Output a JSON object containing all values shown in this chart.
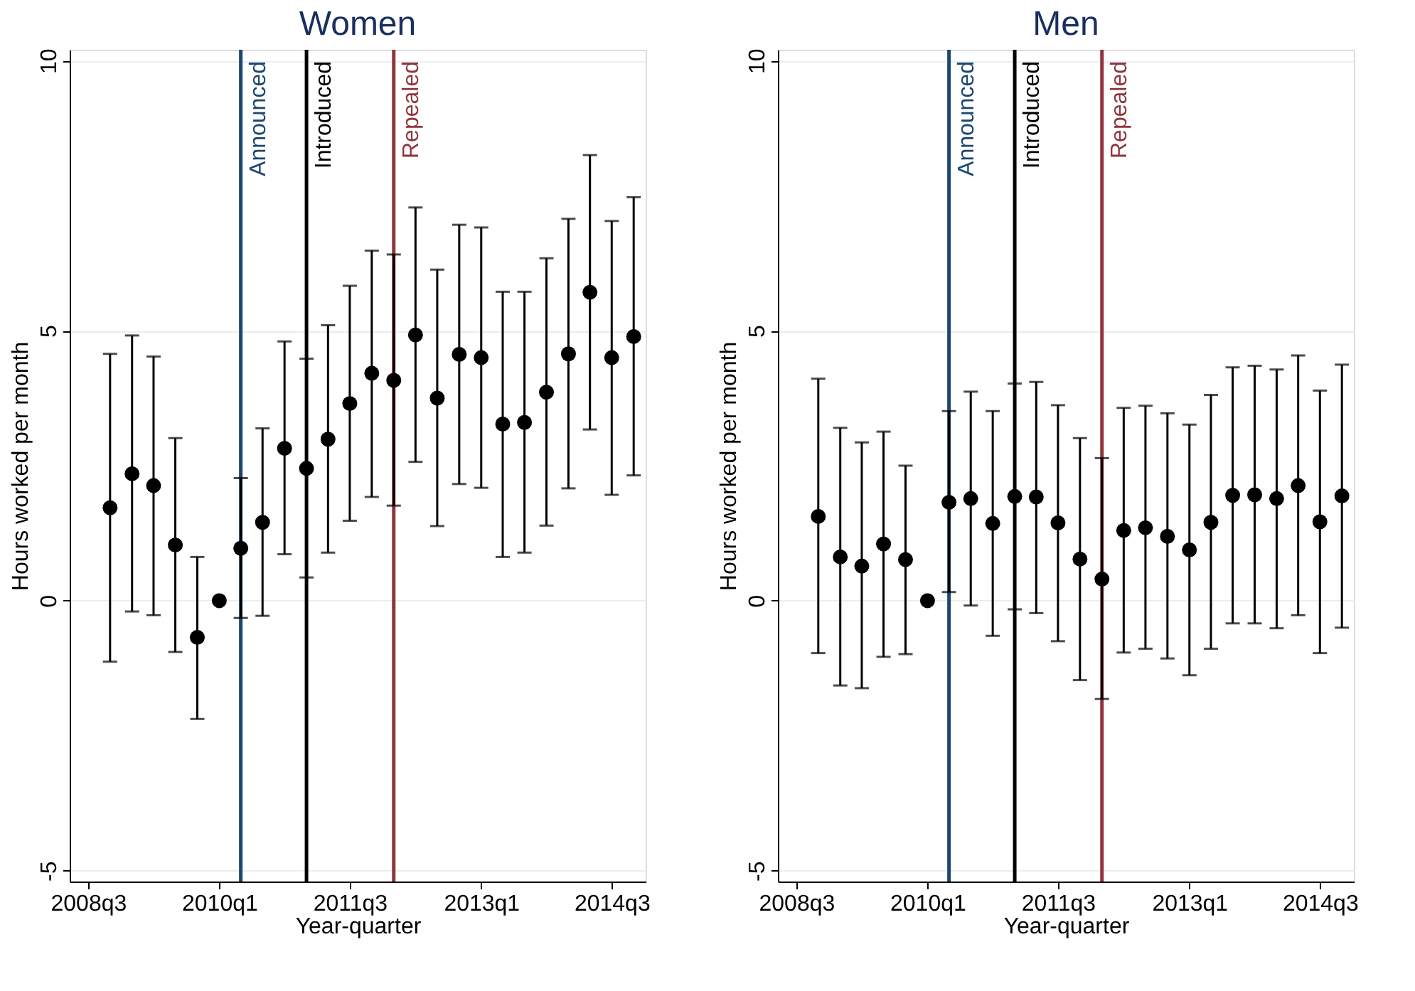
{
  "chart_data": [
    {
      "type": "scatter",
      "title": "Women",
      "xlabel": "Year-quarter",
      "ylabel": "Hours worked per month",
      "x": [
        "2008-10",
        "2009-01",
        "2009-04",
        "2009-07",
        "2009-10",
        "2010-01",
        "2010-04",
        "2010-07",
        "2010-10",
        "2011-01",
        "2011-04",
        "2011-07",
        "2011-10",
        "2012-01",
        "2012-04",
        "2012-07",
        "2012-10",
        "2013-01",
        "2013-04",
        "2013-07",
        "2013-10",
        "2014-01",
        "2014-04",
        "2014-07",
        "2014-10"
      ],
      "series": [
        {
          "color": "#000000",
          "values": [
            1.72,
            2.35,
            2.13,
            1.03,
            -0.68,
            0,
            0.97,
            1.45,
            2.82,
            2.45,
            2.99,
            3.65,
            4.21,
            4.08,
            4.92,
            3.75,
            4.56,
            4.5,
            3.27,
            3.3,
            3.86,
            4.57,
            5.71,
            4.5,
            4.89
          ],
          "errors": [
            [
              -1.13,
              4.57
            ],
            [
              -0.2,
              4.91
            ],
            [
              -0.27,
              4.52
            ],
            [
              -0.95,
              3.01
            ],
            [
              -2.19,
              0.81
            ],
            null,
            [
              -0.32,
              2.27
            ],
            [
              -0.28,
              3.19
            ],
            [
              0.86,
              4.8
            ],
            [
              0.43,
              4.48
            ],
            [
              0.89,
              5.1
            ],
            [
              1.48,
              5.83
            ],
            [
              1.92,
              6.48
            ],
            [
              1.76,
              6.41
            ],
            [
              2.57,
              7.28
            ],
            [
              1.38,
              6.13
            ],
            [
              2.16,
              6.96
            ],
            [
              2.09,
              6.91
            ],
            [
              0.81,
              5.72
            ],
            [
              0.89,
              5.72
            ],
            [
              1.39,
              6.34
            ],
            [
              2.08,
              7.07
            ],
            [
              3.17,
              8.25
            ],
            [
              1.96,
              7.03
            ],
            [
              2.32,
              7.47
            ]
          ]
        }
      ],
      "xlim": [
        "2008-04-15",
        "2014-11-20"
      ],
      "xticks": [
        {
          "value": "2008-07",
          "label": "2008q3"
        },
        {
          "value": "2010-01",
          "label": "2010q1"
        },
        {
          "value": "2011-07",
          "label": "2011q3"
        },
        {
          "value": "2013-01",
          "label": "2013q1"
        },
        {
          "value": "2014-07",
          "label": "2014q3"
        }
      ],
      "ylim": [
        -5.2,
        10.2
      ],
      "yticks": [
        -5,
        0,
        5,
        10
      ],
      "grid": "y",
      "marker": "circle",
      "legend": false,
      "ref_lines": [
        {
          "axis": "x",
          "value": "2010-04",
          "label": "Announced",
          "color": "#1a476f"
        },
        {
          "axis": "x",
          "value": "2011-01",
          "label": "Introduced",
          "color": "#000000"
        },
        {
          "axis": "x",
          "value": "2012-01",
          "label": "Repealed",
          "color": "#90353b"
        }
      ]
    },
    {
      "type": "scatter",
      "title": "Men",
      "xlabel": "Year-quarter",
      "ylabel": "Hours worked per month",
      "x": [
        "2008-10",
        "2009-01",
        "2009-04",
        "2009-07",
        "2009-10",
        "2010-01",
        "2010-04",
        "2010-07",
        "2010-10",
        "2011-01",
        "2011-04",
        "2011-07",
        "2011-10",
        "2012-01",
        "2012-04",
        "2012-07",
        "2012-10",
        "2013-01",
        "2013-04",
        "2013-07",
        "2013-10",
        "2014-01",
        "2014-04",
        "2014-07",
        "2014-10"
      ],
      "series": [
        {
          "color": "#000000",
          "values": [
            1.56,
            0.81,
            0.64,
            1.05,
            0.76,
            0,
            1.82,
            1.89,
            1.43,
            1.93,
            1.92,
            1.44,
            0.77,
            0.4,
            1.3,
            1.35,
            1.19,
            0.94,
            1.45,
            1.95,
            1.96,
            1.89,
            2.13,
            1.46,
            1.94
          ],
          "errors": [
            [
              -0.97,
              4.11
            ],
            [
              -1.57,
              3.2
            ],
            [
              -1.62,
              2.93
            ],
            [
              -1.04,
              3.13
            ],
            [
              -0.99,
              2.5
            ],
            null,
            [
              0.16,
              3.51
            ],
            [
              -0.09,
              3.87
            ],
            [
              -0.65,
              3.51
            ],
            [
              -0.16,
              4.02
            ],
            [
              -0.23,
              4.05
            ],
            [
              -0.75,
              3.62
            ],
            [
              -1.47,
              3.01
            ],
            [
              -1.82,
              2.64
            ],
            [
              -0.96,
              3.57
            ],
            [
              -0.89,
              3.61
            ],
            [
              -1.07,
              3.47
            ],
            [
              -1.38,
              3.26
            ],
            [
              -0.89,
              3.81
            ],
            [
              -0.42,
              4.32
            ],
            [
              -0.42,
              4.35
            ],
            [
              -0.51,
              4.28
            ],
            [
              -0.27,
              4.54
            ],
            [
              -0.97,
              3.89
            ],
            [
              -0.5,
              4.37
            ]
          ]
        }
      ],
      "xlim": [
        "2008-04-15",
        "2014-11-20"
      ],
      "xticks": [
        {
          "value": "2008-07",
          "label": "2008q3"
        },
        {
          "value": "2010-01",
          "label": "2010q1"
        },
        {
          "value": "2011-07",
          "label": "2011q3"
        },
        {
          "value": "2013-01",
          "label": "2013q1"
        },
        {
          "value": "2014-07",
          "label": "2014q3"
        }
      ],
      "ylim": [
        -5.2,
        10.2
      ],
      "yticks": [
        -5,
        0,
        5,
        10
      ],
      "grid": "y",
      "marker": "circle",
      "legend": false,
      "ref_lines": [
        {
          "axis": "x",
          "value": "2010-04",
          "label": "Announced",
          "color": "#1a476f"
        },
        {
          "axis": "x",
          "value": "2011-01",
          "label": "Introduced",
          "color": "#000000"
        },
        {
          "axis": "x",
          "value": "2012-01",
          "label": "Repealed",
          "color": "#90353b"
        }
      ]
    }
  ]
}
